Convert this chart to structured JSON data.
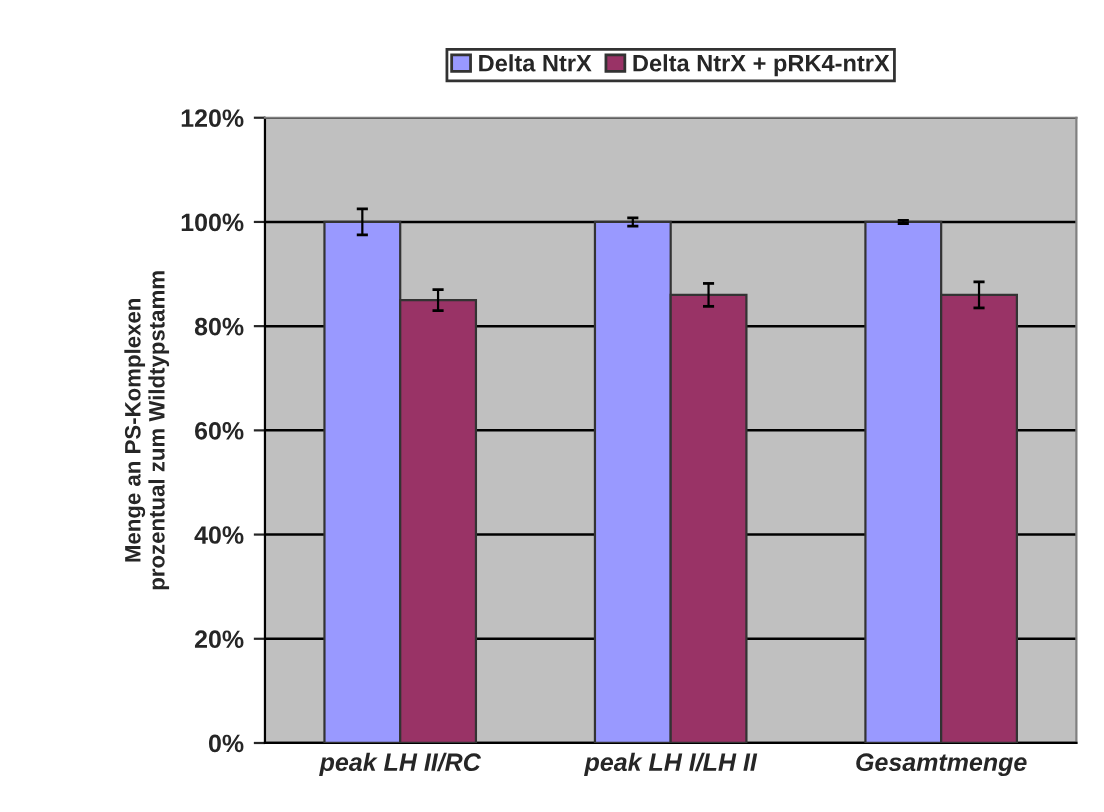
{
  "chart_data": {
    "type": "bar",
    "categories": [
      "peak LH II/RC",
      "peak LH I/LH II",
      "Gesamtmenge"
    ],
    "ylabel": "Menge an PS-Komplexen\nprozentual zum Wildtypstamm",
    "series": [
      {
        "name": "Delta NtrX",
        "color": "#9999ff",
        "values": [
          100,
          100,
          100
        ],
        "errors": [
          2.5,
          0.8,
          0.3
        ]
      },
      {
        "name": "Delta NtrX + pRK4-ntrX",
        "color": "#993366",
        "values": [
          85,
          86,
          86
        ],
        "errors": [
          2,
          2.2,
          2.5
        ]
      }
    ],
    "ylim": [
      0,
      120
    ],
    "yticks": [
      {
        "value": 0,
        "label": "0%"
      },
      {
        "value": 20,
        "label": "20%"
      },
      {
        "value": 40,
        "label": "40%"
      },
      {
        "value": 60,
        "label": "60%"
      },
      {
        "value": 80,
        "label": "80%"
      },
      {
        "value": 100,
        "label": "100%"
      },
      {
        "value": 120,
        "label": "120%"
      }
    ],
    "grid": "y",
    "legend": "top"
  }
}
